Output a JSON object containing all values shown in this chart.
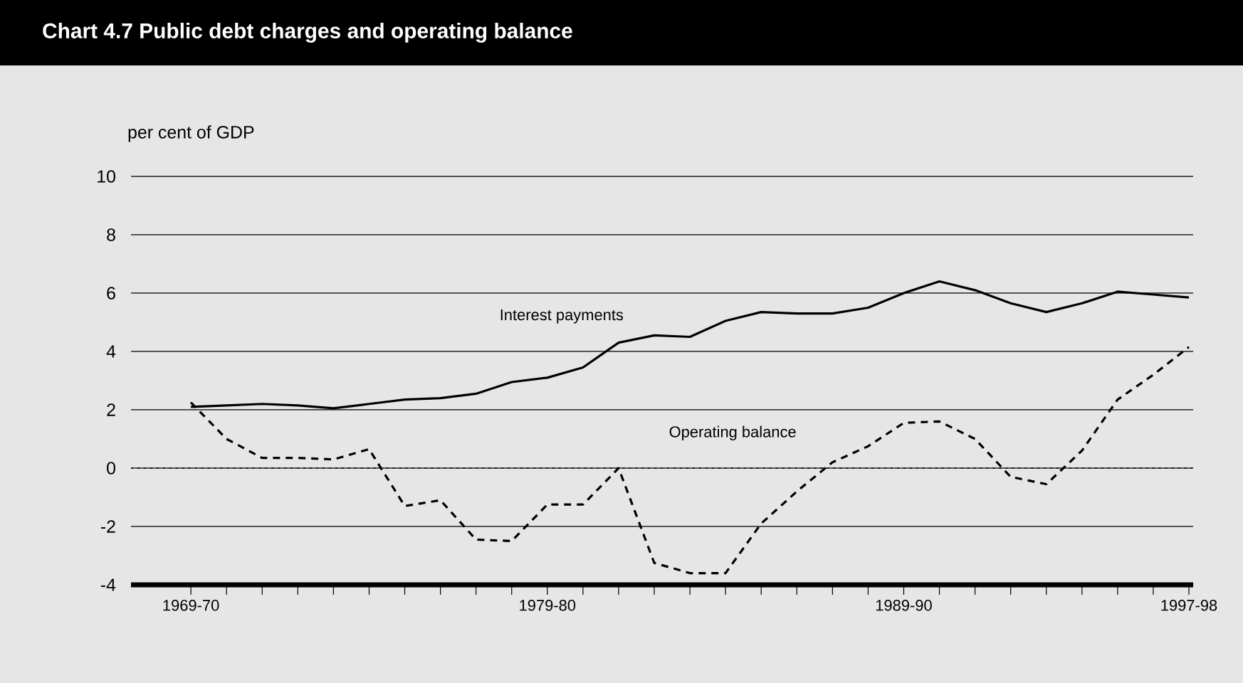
{
  "chart_data": {
    "type": "line",
    "title": "Chart 4.7   Public debt charges and operating balance",
    "ylabel": "per cent of GDP",
    "categories": [
      "1969-70",
      null,
      null,
      null,
      null,
      null,
      null,
      null,
      null,
      null,
      "1979-80",
      null,
      null,
      null,
      null,
      null,
      null,
      null,
      null,
      null,
      "1989-90",
      null,
      null,
      null,
      null,
      null,
      null,
      null,
      "1997-98"
    ],
    "series": [
      {
        "name": "Interest payments",
        "color": "#000000",
        "line_style": "solid",
        "values": [
          2.1,
          2.15,
          2.2,
          2.15,
          2.05,
          2.2,
          2.35,
          2.4,
          2.55,
          2.95,
          3.1,
          3.45,
          4.3,
          4.55,
          4.5,
          5.05,
          5.35,
          5.3,
          5.3,
          5.5,
          6.0,
          6.4,
          6.1,
          5.65,
          5.35,
          5.65,
          6.05,
          5.95,
          5.85
        ]
      },
      {
        "name": "Operating balance",
        "color": "#000000",
        "line_style": "dashed",
        "values": [
          2.25,
          1.0,
          0.35,
          0.35,
          0.3,
          0.65,
          -1.3,
          -1.1,
          -2.45,
          -2.5,
          -1.25,
          -1.25,
          0.0,
          -3.25,
          -3.6,
          -3.6,
          -1.9,
          -0.8,
          0.2,
          0.75,
          1.55,
          1.6,
          1.0,
          -0.3,
          -0.55,
          0.6,
          2.35,
          3.2,
          4.15
        ]
      }
    ],
    "ylim": [
      -4,
      10
    ],
    "yticks": [
      -4,
      -2,
      0,
      2,
      4,
      6,
      8,
      10
    ],
    "grid": "y",
    "marker": "none",
    "ref_lines": [
      {
        "axis": "y",
        "value": 0,
        "line_style": "dotted",
        "color": "#000000"
      }
    ]
  }
}
